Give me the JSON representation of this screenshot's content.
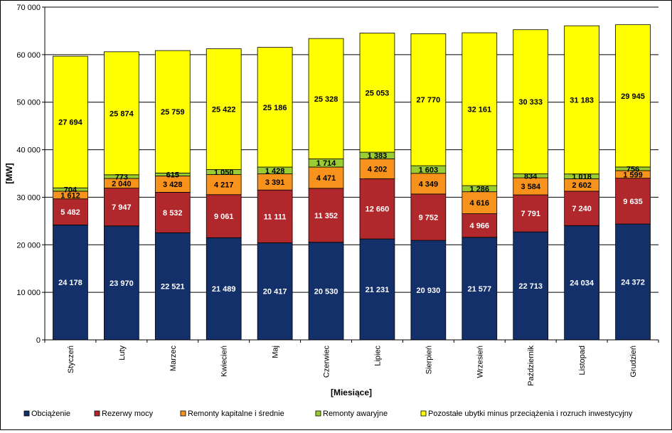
{
  "chart_data": {
    "type": "bar",
    "stacked": true,
    "xlabel": "[Miesiące]",
    "ylabel": "[MW]",
    "ylim": [
      0,
      70000
    ],
    "yticks": [
      0,
      10000,
      20000,
      30000,
      40000,
      50000,
      60000,
      70000
    ],
    "ytick_labels": [
      "0",
      "10 000",
      "20 000",
      "30 000",
      "40 000",
      "50 000",
      "60 000",
      "70 000"
    ],
    "grid": true,
    "legend_position": "bottom",
    "categories": [
      "Styczeń",
      "Luty",
      "Marzec",
      "Kwiecień",
      "Maj",
      "Czerwiec",
      "Lipiec",
      "Sierpień",
      "Wrzesień",
      "Październik",
      "Listopad",
      "Grudzień"
    ],
    "series": [
      {
        "name": "Obciążenie",
        "color": "#13306a",
        "label_color": "#ffffff",
        "values": [
          24178,
          23970,
          22521,
          21489,
          20417,
          20530,
          21231,
          20930,
          21577,
          22713,
          24034,
          24372
        ],
        "labels": [
          "24 178",
          "23 970",
          "22 521",
          "21 489",
          "20 417",
          "20 530",
          "21 231",
          "20 930",
          "21 577",
          "22 713",
          "24 034",
          "24 372"
        ]
      },
      {
        "name": "Rezerwy mocy",
        "color": "#b0282b",
        "label_color": "#ffffff",
        "values": [
          5482,
          7947,
          8532,
          9061,
          11111,
          11352,
          12660,
          9752,
          4966,
          7791,
          7240,
          9635
        ],
        "labels": [
          "5 482",
          "7 947",
          "8 532",
          "9 061",
          "11 111",
          "11 352",
          "12 660",
          "9 752",
          "4 966",
          "7 791",
          "7 240",
          "9 635"
        ]
      },
      {
        "name": "Remonty kapitalne i średnie",
        "color": "#f7931d",
        "label_color": "#000000",
        "values": [
          1612,
          2040,
          3428,
          4217,
          3391,
          4471,
          4202,
          4349,
          4616,
          3584,
          2602,
          1599
        ],
        "labels": [
          "1 612",
          "2 040",
          "3 428",
          "4 217",
          "3 391",
          "4 471",
          "4 202",
          "4 349",
          "4 616",
          "3 584",
          "2 602",
          "1 599"
        ]
      },
      {
        "name": "Remonty awaryjne",
        "color": "#9acd32",
        "label_color": "#000000",
        "values": [
          704,
          773,
          615,
          1050,
          1428,
          1714,
          1383,
          1603,
          1286,
          834,
          1018,
          756
        ],
        "labels": [
          "704",
          "773",
          "615",
          "1 050",
          "1 428",
          "1 714",
          "1 383",
          "1 603",
          "1 286",
          "834",
          "1 018",
          "756"
        ]
      },
      {
        "name": "Pozostałe ubytki minus przeciążenia i rozruch inwestycyjny",
        "color": "#ffff00",
        "label_color": "#000000",
        "values": [
          27694,
          25874,
          25759,
          25422,
          25186,
          25328,
          25053,
          27770,
          32161,
          30333,
          31183,
          29945
        ],
        "labels": [
          "27 694",
          "25 874",
          "25 759",
          "25 422",
          "25 186",
          "25 328",
          "25 053",
          "27 770",
          "32 161",
          "30 333",
          "31 183",
          "29 945"
        ]
      }
    ]
  }
}
